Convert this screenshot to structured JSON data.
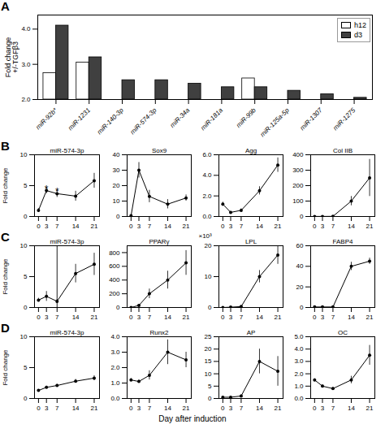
{
  "chart_data": [
    {
      "type": "bar",
      "categories": [
        "miR-92b*",
        "miR-1231",
        "miR-140-3p",
        "miR-574-3p",
        "miR-34a",
        "miR-181a",
        "miR-99b",
        "miR-125a-5p",
        "miR-1307",
        "miR-1275"
      ],
      "series": [
        {
          "name": "h12",
          "color": "white",
          "values": [
            2.75,
            3.05,
            null,
            null,
            null,
            null,
            2.6,
            null,
            null,
            null
          ]
        },
        {
          "name": "d3",
          "color": "#404040",
          "values": [
            4.1,
            3.2,
            2.55,
            2.55,
            2.45,
            2.35,
            2.35,
            2.25,
            2.15,
            2.05
          ]
        }
      ],
      "ylabel": "Fold change\n+/-TGFβ3",
      "ylim": [
        2.0,
        4.4
      ],
      "yticks": [
        2,
        3,
        4
      ],
      "legend": "upper right",
      "annotations": [
        {
          "text": "A"
        }
      ]
    },
    {
      "type": "line",
      "title": "miR-574-3p",
      "x": [
        0,
        3,
        7,
        14,
        21
      ],
      "values": [
        1.0,
        4.2,
        3.7,
        3.3,
        5.8
      ],
      "errors": [
        0.3,
        0.5,
        0.6,
        0.8,
        1.2
      ],
      "xlim": [
        -1.5,
        23
      ],
      "xticks": [
        0,
        3,
        7,
        14,
        21
      ],
      "ylim": [
        0,
        10
      ],
      "yticks": [
        0,
        5,
        10
      ],
      "ylabel": "Fold change",
      "color": "black",
      "marker": "o",
      "line_style": "solid",
      "annotations": [
        {
          "text": "B"
        },
        {
          "text": "*",
          "x": 3,
          "y": 5.0
        },
        {
          "text": "*",
          "x": 7,
          "y": 4.6
        }
      ]
    },
    {
      "type": "line",
      "title": "Sox9",
      "x": [
        0,
        3,
        7,
        14,
        21
      ],
      "values": [
        0.5,
        30,
        13,
        8,
        12
      ],
      "errors": [
        0.3,
        5,
        4,
        3,
        2
      ],
      "xlim": [
        -1.5,
        23
      ],
      "xticks": [
        0,
        3,
        7,
        14,
        21
      ],
      "ylim": [
        0,
        40
      ],
      "yticks": [
        0,
        10,
        20,
        30,
        40
      ],
      "color": "black",
      "marker": "o",
      "line_style": "solid"
    },
    {
      "type": "line",
      "title": "Agg",
      "x": [
        0,
        3,
        7,
        14,
        21
      ],
      "values": [
        1.2,
        0.4,
        0.6,
        2.5,
        5.0
      ],
      "errors": [
        0.2,
        0.1,
        0.15,
        0.4,
        0.7
      ],
      "xlim": [
        -1.5,
        23
      ],
      "xticks": [
        0,
        3,
        7,
        14,
        21
      ],
      "ylim": [
        0,
        6
      ],
      "yticks": [
        0,
        2,
        4,
        6
      ],
      "color": "black",
      "marker": "o",
      "line_style": "solid"
    },
    {
      "type": "line",
      "title": "Col IIB",
      "x": [
        0,
        3,
        7,
        14,
        21
      ],
      "values": [
        0.5,
        0.5,
        1.0,
        100,
        250
      ],
      "errors": [
        0.2,
        0.2,
        0.5,
        30,
        120
      ],
      "xlim": [
        -1.5,
        23
      ],
      "xticks": [
        0,
        3,
        7,
        14,
        21
      ],
      "ylim": [
        0,
        400
      ],
      "yticks": [
        0,
        100,
        200,
        300,
        400
      ],
      "color": "black",
      "marker": "o",
      "line_style": "solid"
    },
    {
      "type": "line",
      "title": "miR-574-3p",
      "x": [
        0,
        3,
        7,
        14,
        21
      ],
      "values": [
        1.2,
        1.8,
        1.0,
        5.5,
        7.0
      ],
      "errors": [
        0.3,
        0.8,
        0.3,
        1.5,
        1.8
      ],
      "xlim": [
        -1.5,
        23
      ],
      "xticks": [
        0,
        3,
        7,
        14,
        21
      ],
      "ylim": [
        0,
        10
      ],
      "yticks": [
        0,
        5,
        10
      ],
      "ylabel": "Fold change",
      "color": "black",
      "marker": "o",
      "line_style": "solid",
      "annotations": [
        {
          "text": "C"
        },
        {
          "type": "vline",
          "x": 7
        }
      ]
    },
    {
      "type": "line",
      "title": "PPARγ",
      "x": [
        0,
        3,
        7,
        14,
        21
      ],
      "values": [
        0.0,
        30,
        200,
        400,
        650
      ],
      "errors": [
        0.0,
        10,
        70,
        130,
        180
      ],
      "xlim": [
        -1.5,
        23
      ],
      "xticks": [
        0,
        3,
        7,
        14,
        21
      ],
      "ylim": [
        0,
        900
      ],
      "yticks": [
        0,
        200,
        400,
        600,
        800
      ],
      "color": "black",
      "marker": "o",
      "line_style": "solid"
    },
    {
      "type": "line",
      "title": "LPL",
      "x": [
        0,
        3,
        7,
        14,
        21
      ],
      "values": [
        0.0,
        0.1,
        0.3,
        10,
        17
      ],
      "errors": [
        0.0,
        0.05,
        0.1,
        2,
        3
      ],
      "xlim": [
        -1.5,
        23
      ],
      "xticks": [
        0,
        3,
        7,
        14,
        21
      ],
      "ylim": [
        0,
        20
      ],
      "yticks": [
        0,
        10,
        20
      ],
      "ylabel": "×10³",
      "color": "black",
      "marker": "o",
      "line_style": "solid"
    },
    {
      "type": "line",
      "title": "FABP4",
      "x": [
        0,
        3,
        7,
        14,
        21
      ],
      "values": [
        0.5,
        0.5,
        0.5,
        40,
        45
      ],
      "errors": [
        0.1,
        0.1,
        0.1,
        4,
        3
      ],
      "xlim": [
        -1.5,
        23
      ],
      "xticks": [
        0,
        3,
        7,
        14,
        21
      ],
      "ylim": [
        0,
        60
      ],
      "yticks": [
        0,
        20,
        40,
        60
      ],
      "color": "black",
      "marker": "o",
      "line_style": "solid"
    },
    {
      "type": "line",
      "title": "miR-574-3p",
      "x": [
        0,
        3,
        7,
        14,
        21
      ],
      "values": [
        1.3,
        1.8,
        2.1,
        2.8,
        3.3
      ],
      "errors": [
        0.15,
        0.2,
        0.2,
        0.3,
        0.4
      ],
      "xlim": [
        -1.5,
        23
      ],
      "xticks": [
        0,
        3,
        7,
        14,
        21
      ],
      "ylim": [
        0,
        10
      ],
      "yticks": [
        0,
        5,
        10
      ],
      "ylabel": "Fold change",
      "color": "black",
      "marker": "o",
      "line_style": "solid",
      "annotations": [
        {
          "text": "D"
        }
      ]
    },
    {
      "type": "line",
      "title": "Runx2",
      "x": [
        0,
        3,
        7,
        14,
        21
      ],
      "values": [
        1.2,
        1.1,
        1.5,
        3.0,
        2.5
      ],
      "errors": [
        0.1,
        0.1,
        0.3,
        0.8,
        0.5
      ],
      "xlim": [
        -1.5,
        23
      ],
      "xticks": [
        0,
        3,
        7,
        14,
        21
      ],
      "ylim": [
        0,
        4
      ],
      "yticks": [
        0,
        1,
        2,
        3,
        4
      ],
      "xlabel": "Day after induction",
      "color": "black",
      "marker": "o",
      "line_style": "solid"
    },
    {
      "type": "line",
      "title": "AP",
      "x": [
        0,
        3,
        7,
        14,
        21
      ],
      "values": [
        0.5,
        0.5,
        1.0,
        15,
        11
      ],
      "errors": [
        0.2,
        0.2,
        0.5,
        5,
        6
      ],
      "xlim": [
        -1.5,
        23
      ],
      "xticks": [
        0,
        3,
        7,
        14,
        21
      ],
      "ylim": [
        0,
        25
      ],
      "yticks": [
        0,
        5,
        10,
        15,
        20,
        25
      ],
      "color": "black",
      "marker": "o",
      "line_style": "solid"
    },
    {
      "type": "line",
      "title": "OC",
      "x": [
        0,
        3,
        7,
        14,
        21
      ],
      "values": [
        1.5,
        1.0,
        0.8,
        1.5,
        3.5
      ],
      "errors": [
        0.1,
        0.1,
        0.1,
        0.3,
        0.8
      ],
      "xlim": [
        -1.5,
        23
      ],
      "xticks": [
        0,
        3,
        7,
        14,
        21
      ],
      "ylim": [
        0,
        5
      ],
      "yticks": [
        0,
        1,
        2,
        3,
        4,
        5
      ],
      "color": "black",
      "marker": "o",
      "line_style": "solid"
    }
  ]
}
